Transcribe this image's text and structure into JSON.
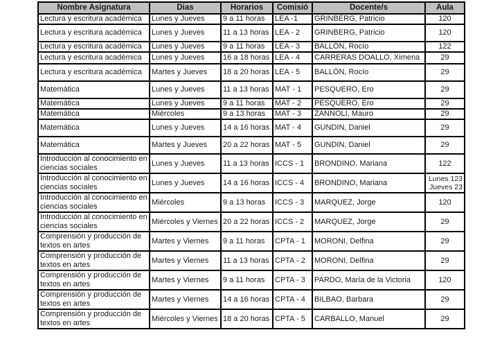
{
  "headers": [
    "Nombre Asignatura",
    "Dias",
    "Horarios",
    "Comisió",
    "Docente/s",
    "Aula"
  ],
  "rows": [
    [
      "Lectura y escritura académica",
      "Lunes y Jueves",
      "9 a 11 horas",
      "LEA -1",
      "GRINBERG, Patricio",
      "120"
    ],
    [
      "Lectura y escritura académica",
      "Lunes y Jueves",
      "11 a 13 horas",
      "LEA - 2",
      "GRINBERG, Patricio",
      "120"
    ],
    [
      "Lectura y escritura académica",
      "Lunes y Jueves",
      "9 a 11 horas",
      "LEA - 3",
      "BALLÓN, Rocío",
      "122"
    ],
    [
      "Lectura y escritura académica",
      "Lunes y Jueves",
      "16 a 18 horas",
      "LEA - 4",
      "CARRERAS DOALLO, Ximena",
      "29"
    ],
    [
      "Lectura y escritura académica",
      "Martes y Jueves",
      "18 a 20 horas",
      "LEA - 5",
      "BALLÓN, Rocío",
      "29"
    ],
    [
      "Matemática",
      "Lunes y Jueves",
      "11 a 13 horas",
      "MAT - 1",
      "PESQUERO, Ero",
      "29"
    ],
    [
      "Matemática",
      "Lunes y Jueves",
      "9 a 11 horas",
      "MAT - 2",
      "PESQUERO, Ero",
      "29"
    ],
    [
      "Matemática",
      "Miércoles",
      "9 a 13 horas",
      "MAT - 3",
      "ZANNOLI, Mauro",
      "29"
    ],
    [
      "Matemática",
      "Lunes y Jueves",
      "14 a 16 horas",
      "MAT - 4",
      "GUNDIN, Daniel",
      "29"
    ],
    [
      "Matemática",
      "Martes y Jueves",
      "20 a 22 horas",
      "MAT - 5",
      "GUNDIN, Daniel",
      "29"
    ],
    [
      "Introducción al conocimiento en ciencias sociales",
      "Lunes y Jueves",
      "11 a 13 horas",
      "ICCS - 1",
      "BRONDINO, Mariana",
      "122"
    ],
    [
      "Introducción al conocimiento en ciencias sociales",
      "Lunes y Jueves",
      "14 a 16 horas",
      "ICCS - 4",
      "BRONDINO, Mariana",
      "Lunes 123 Jueves 23"
    ],
    [
      "Introducción al conocimiento en ciencias sociales",
      "Miércoles",
      "9 a 13 horas",
      "ICCS - 3",
      "MARQUEZ, Jorge",
      "120"
    ],
    [
      "Introducción al conocimiento en ciencias sociales",
      "Miércoles y Viernes",
      "20 a 22 horas",
      "ICCS - 2",
      "MARQUEZ, Jorge",
      "29"
    ],
    [
      "Comprensión y producción de textos en artes",
      "Martes y Viernes",
      "9 a 11 horas",
      "CPTA - 1",
      "MORONI, Delfina",
      "29"
    ],
    [
      "Comprensión y producción de textos en artes",
      "Martes y Viernes",
      "11 a 13 horas",
      "CPTA - 2",
      "MORONI, Delfina",
      "29"
    ],
    [
      "Comprensión y producción de textos en artes",
      "Martes y Viernes",
      "9 a 11 horas",
      "CPTA - 3",
      "PARDO, María de la Victoria",
      "120"
    ],
    [
      "Comprensión y producción de textos en artes",
      "Martes y Viernes",
      "14 a 16 horas",
      "CPTA - 4",
      "BILBAO, Barbara",
      "29"
    ],
    [
      "Comprensión y producción de textos en artes",
      "Miércoles y Viernes",
      "18 a 20 horas",
      "CPTA - 5",
      "CARBALLO, Manuel",
      "29"
    ]
  ]
}
